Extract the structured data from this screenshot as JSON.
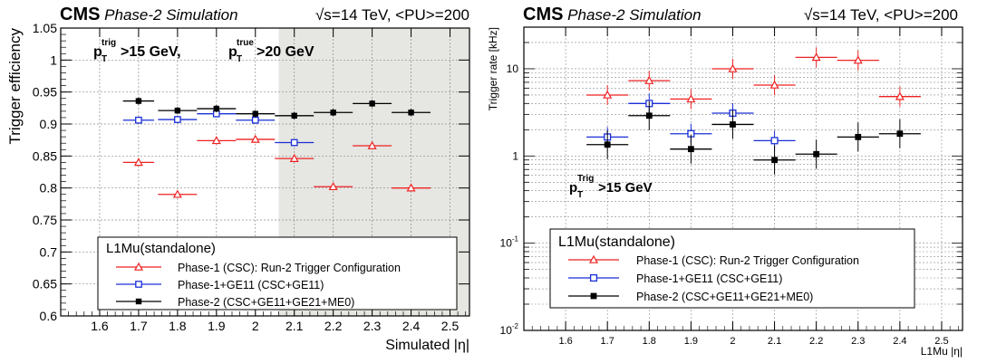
{
  "colors": {
    "phase1": "#ee2222",
    "ge11": "#1a2fd8",
    "phase2": "#000000",
    "shade": "#e6e6e2",
    "grid": "#8a8a8a"
  },
  "chart_data": [
    {
      "type": "scatter",
      "header": {
        "cms": "CMS",
        "sim": "Phase-2 Simulation",
        "energy": "√s=14 TeV, <PU>=200"
      },
      "annotation": {
        "p": "p",
        "sup1": "trig",
        "sub1": "T",
        "mid": ">15 GeV,  ",
        "p2": "p",
        "sup2": "true",
        "sub2": "T",
        "tail": ">20 GeV"
      },
      "xlabel": "Simulated |η|",
      "ylabel": "Trigger efficiency",
      "xlim": [
        1.5,
        2.55
      ],
      "ylim": [
        0.6,
        1.05
      ],
      "xticks": [
        "1.6",
        "1.7",
        "1.8",
        "1.9",
        "2",
        "2.1",
        "2.2",
        "2.3",
        "2.4",
        "2.5"
      ],
      "yticks": [
        "0.6",
        "0.65",
        "0.7",
        "0.75",
        "0.8",
        "0.85",
        "0.9",
        "0.95",
        "1",
        "1.05"
      ],
      "shaded_region_x": [
        2.06,
        2.55
      ],
      "legend": {
        "title": "L1Mu(standalone)",
        "placement": "bottom-right",
        "entries": [
          "Phase-1 (CSC): Run-2 Trigger Configuration",
          "Phase-1+GE11 (CSC+GE11)",
          "Phase-2 (CSC+GE11+GE21+ME0)"
        ]
      },
      "series": [
        {
          "name": "Phase-1 (CSC): Run-2 Trigger Configuration",
          "marker": "open-triangle",
          "x": [
            1.7,
            1.8,
            1.9,
            2.0,
            2.1,
            2.2,
            2.3,
            2.4
          ],
          "xerr": [
            0.04,
            0.05,
            0.05,
            0.05,
            0.05,
            0.05,
            0.05,
            0.05
          ],
          "y": [
            0.84,
            0.79,
            0.874,
            0.876,
            0.846,
            0.802,
            0.866,
            0.8
          ]
        },
        {
          "name": "Phase-1+GE11 (CSC+GE11)",
          "marker": "open-square",
          "x": [
            1.7,
            1.8,
            1.9,
            2.0,
            2.1
          ],
          "xerr": [
            0.04,
            0.05,
            0.05,
            0.05,
            0.05
          ],
          "y": [
            0.906,
            0.907,
            0.916,
            0.906,
            0.871
          ]
        },
        {
          "name": "Phase-2 (CSC+GE11+GE21+ME0)",
          "marker": "filled-square",
          "x": [
            1.7,
            1.8,
            1.9,
            2.0,
            2.1,
            2.2,
            2.3,
            2.4
          ],
          "xerr": [
            0.04,
            0.05,
            0.05,
            0.05,
            0.05,
            0.05,
            0.05,
            0.05
          ],
          "y": [
            0.936,
            0.921,
            0.924,
            0.916,
            0.913,
            0.918,
            0.932,
            0.918
          ]
        }
      ]
    },
    {
      "type": "scatter",
      "header": {
        "cms": "CMS",
        "sim": "Phase-2 Simulation",
        "energy": "√s=14 TeV, <PU>=200"
      },
      "annotation": {
        "p": "p",
        "sup1": "Trig",
        "sub1": "T",
        "tail": ">15 GeV"
      },
      "xlabel": "L1Mu |η|",
      "ylabel": "Trigger rate [kHz]",
      "xlim": [
        1.5,
        2.55
      ],
      "ylim": [
        0.01,
        30
      ],
      "log_y": true,
      "xticks": [
        "1.6",
        "1.7",
        "1.8",
        "1.9",
        "2",
        "2.1",
        "2.2",
        "2.3",
        "2.4",
        "2.5"
      ],
      "yticks": [
        {
          "b": "10",
          "e": "-2"
        },
        {
          "b": "10",
          "e": "-1"
        },
        {
          "b": "1",
          "e": ""
        },
        {
          "b": "10",
          "e": ""
        }
      ],
      "legend": {
        "title": "L1Mu(standalone)",
        "placement": "bottom-right",
        "entries": [
          "Phase-1 (CSC): Run-2 Trigger Configuration",
          "Phase-1+GE11 (CSC+GE11)",
          "Phase-2 (CSC+GE11+GE21+ME0)"
        ]
      },
      "series": [
        {
          "name": "Phase-1 (CSC): Run-2 Trigger Configuration",
          "marker": "open-triangle",
          "x": [
            1.7,
            1.8,
            1.9,
            2.0,
            2.1,
            2.2,
            2.3,
            2.4
          ],
          "xerr": [
            0.05,
            0.05,
            0.05,
            0.05,
            0.05,
            0.05,
            0.05,
            0.05
          ],
          "y": [
            5.0,
            7.3,
            4.5,
            10.0,
            6.5,
            13.5,
            12.5,
            4.8
          ]
        },
        {
          "name": "Phase-1+GE11 (CSC+GE11)",
          "marker": "open-square",
          "x": [
            1.7,
            1.8,
            1.9,
            2.0,
            2.1
          ],
          "xerr": [
            0.05,
            0.05,
            0.05,
            0.05,
            0.05
          ],
          "y": [
            1.65,
            4.0,
            1.8,
            3.1,
            1.5
          ]
        },
        {
          "name": "Phase-2 (CSC+GE11+GE21+ME0)",
          "marker": "filled-square",
          "x": [
            1.7,
            1.8,
            1.9,
            2.0,
            2.1,
            2.2,
            2.3,
            2.4
          ],
          "xerr": [
            0.05,
            0.05,
            0.05,
            0.05,
            0.05,
            0.05,
            0.05,
            0.05
          ],
          "y": [
            1.35,
            2.9,
            1.2,
            2.3,
            0.9,
            1.05,
            1.65,
            1.8
          ]
        }
      ]
    }
  ]
}
